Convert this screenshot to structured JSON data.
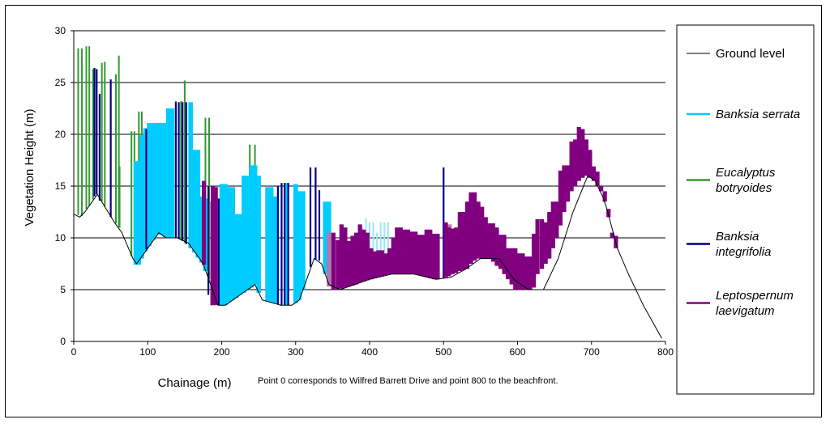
{
  "chart_data": {
    "type": "bar",
    "xlabel": "Chainage (m)",
    "ylabel": "Vegetation Height (m)",
    "note": "Point 0 corresponds to Wilfred Barrett Drive and point 800 to the beachfront.",
    "xlim": [
      0,
      800
    ],
    "ylim": [
      0,
      30
    ],
    "x_ticks": [
      0,
      100,
      200,
      300,
      400,
      500,
      600,
      700,
      800
    ],
    "y_ticks": [
      0,
      5,
      10,
      15,
      20,
      25,
      30
    ],
    "gridlines": "horizontal",
    "colors": {
      "ground": "#000000",
      "banksia_serrata": "#00ccff",
      "eucalyptus": "#339933",
      "integrifolia": "#000080",
      "leptospernum": "#800080",
      "leptospernum_light": "#b07ab0",
      "serrata_light": "#99e6ff"
    },
    "legend": [
      {
        "key": "ground",
        "label_lines": [
          "Ground  level"
        ],
        "italic": false
      },
      {
        "key": "banksia_serrata",
        "label_lines": [
          "Banksia serrata"
        ],
        "italic": true
      },
      {
        "key": "eucalyptus",
        "label_lines": [
          "Eucalyptus",
          "botryoides"
        ],
        "italic": true
      },
      {
        "key": "integrifolia",
        "label_lines": [
          "Banksia",
          "integrifolia"
        ],
        "italic": true
      },
      {
        "key": "leptospernum",
        "label_lines": [
          "Leptospernum",
          "laevigatum"
        ],
        "italic": true
      }
    ],
    "ground_level": {
      "x": [
        0,
        8,
        15,
        25,
        32,
        42,
        55,
        65,
        80,
        85,
        95,
        105,
        115,
        125,
        140,
        155,
        165,
        175,
        185,
        195,
        205,
        215,
        225,
        235,
        245,
        255,
        265,
        280,
        295,
        305,
        315,
        325,
        335,
        345,
        360,
        380,
        400,
        430,
        460,
        490,
        510,
        530,
        550,
        575,
        595,
        615,
        635,
        655,
        675,
        695,
        705,
        715,
        720,
        735,
        750,
        770,
        795
      ],
      "y": [
        12.3,
        12.0,
        12.5,
        13.5,
        14.2,
        13.0,
        11.5,
        10.5,
        8.0,
        7.5,
        8.5,
        9.5,
        10.5,
        10.0,
        10.0,
        9.5,
        8.5,
        7.5,
        5.5,
        3.5,
        3.5,
        4.0,
        4.5,
        5.0,
        5.5,
        4.0,
        3.8,
        3.5,
        3.5,
        4.0,
        6.0,
        8.0,
        7.5,
        5.5,
        5.0,
        5.5,
        6.0,
        6.5,
        6.5,
        6.0,
        6.2,
        7.0,
        8.0,
        8.0,
        6.0,
        5.0,
        5.0,
        8.0,
        12.5,
        16.0,
        15.5,
        14.0,
        13.0,
        9.0,
        6.5,
        3.5,
        0.3
      ]
    },
    "series": [
      {
        "name": "Eucalyptus botryoides",
        "key": "eucalyptus",
        "bars": [
          [
            6,
            12.2,
            28.3
          ],
          [
            11,
            12.1,
            28.3
          ],
          [
            17,
            12.8,
            28.5
          ],
          [
            21,
            13.1,
            28.5
          ],
          [
            26,
            13.7,
            26.3
          ],
          [
            38,
            13.5,
            26.9
          ],
          [
            42,
            13.0,
            27.0
          ],
          [
            57,
            11.4,
            25.8
          ],
          [
            61,
            11.0,
            27.6
          ],
          [
            62,
            11.0,
            16.9
          ],
          [
            78,
            8.2,
            20.3
          ],
          [
            82,
            7.6,
            20.3
          ],
          [
            88,
            7.8,
            22.2
          ],
          [
            92,
            8.3,
            22.2
          ],
          [
            100,
            9.0,
            19.7
          ],
          [
            105,
            9.5,
            20.6
          ],
          [
            110,
            10.0,
            21.0
          ],
          [
            113,
            10.3,
            21.0
          ],
          [
            138,
            10.0,
            23.2
          ],
          [
            145,
            9.8,
            23.2
          ],
          [
            150,
            9.5,
            25.2
          ],
          [
            178,
            6.8,
            21.6
          ],
          [
            183,
            6.0,
            21.6
          ],
          [
            238,
            5.0,
            19.0
          ],
          [
            245,
            5.5,
            19.0
          ]
        ]
      },
      {
        "name": "Banksia serrata",
        "key": "banksia_serrata",
        "bars": [
          [
            84,
            7.4,
            17.4
          ],
          [
            88,
            7.4,
            17.4
          ],
          [
            92,
            8.0,
            19.9
          ],
          [
            97,
            8.7,
            20.6
          ],
          [
            102,
            9.2,
            21.1
          ],
          [
            108,
            9.8,
            21.1
          ],
          [
            113,
            10.3,
            21.1
          ],
          [
            118,
            10.3,
            21.1
          ],
          [
            123,
            10.1,
            21.1
          ],
          [
            128,
            10.0,
            22.5
          ],
          [
            133,
            10.0,
            22.5
          ],
          [
            158,
            9.0,
            23.1
          ],
          [
            163,
            8.6,
            18.5
          ],
          [
            168,
            8.1,
            18.5
          ],
          [
            173,
            7.6,
            14.0
          ],
          [
            178,
            6.8,
            13.8
          ],
          [
            200,
            3.5,
            15.2
          ],
          [
            205,
            3.5,
            15.2
          ],
          [
            210,
            3.8,
            14.9
          ],
          [
            215,
            4.0,
            14.9
          ],
          [
            220,
            4.2,
            12.3
          ],
          [
            225,
            4.5,
            12.3
          ],
          [
            230,
            4.7,
            16.0
          ],
          [
            235,
            5.0,
            16.0
          ],
          [
            240,
            5.2,
            17.0
          ],
          [
            245,
            5.5,
            17.0
          ],
          [
            250,
            4.7,
            16.0
          ],
          [
            262,
            3.9,
            14.9
          ],
          [
            267,
            3.8,
            14.9
          ],
          [
            272,
            3.7,
            14.0
          ],
          [
            287,
            3.5,
            15.3
          ],
          [
            300,
            3.7,
            15.2
          ],
          [
            305,
            4.0,
            14.5
          ],
          [
            310,
            5.0,
            14.5
          ],
          [
            340,
            6.5,
            13.5
          ],
          [
            345,
            5.5,
            13.5
          ]
        ]
      },
      {
        "name": "Banksia serrata (light)",
        "key": "serrata_light",
        "bars": [
          [
            390,
            5.8,
            11.0
          ],
          [
            395,
            5.9,
            11.9
          ],
          [
            400,
            6.0,
            11.5
          ],
          [
            405,
            6.1,
            11.5
          ],
          [
            410,
            6.2,
            10.5
          ],
          [
            415,
            6.3,
            11.5
          ],
          [
            420,
            6.4,
            11.5
          ],
          [
            425,
            6.5,
            11.5
          ]
        ]
      },
      {
        "name": "Banksia integrifolia",
        "key": "integrifolia",
        "bars": [
          [
            28,
            14.0,
            26.4
          ],
          [
            31,
            14.2,
            26.3
          ],
          [
            35,
            13.6,
            23.9
          ],
          [
            50,
            12.0,
            25.3
          ],
          [
            98,
            8.9,
            20.5
          ],
          [
            138,
            10.0,
            23.1
          ],
          [
            142,
            9.9,
            23.1
          ],
          [
            147,
            9.7,
            23.1
          ],
          [
            152,
            9.4,
            23.1
          ],
          [
            182,
            4.5,
            15.0
          ],
          [
            186,
            3.5,
            13.5
          ],
          [
            196,
            3.5,
            13.8
          ],
          [
            276,
            3.6,
            15.0
          ],
          [
            281,
            3.5,
            15.3
          ],
          [
            285,
            3.5,
            15.3
          ],
          [
            290,
            3.5,
            15.3
          ],
          [
            320,
            7.2,
            16.8
          ],
          [
            327,
            7.9,
            16.8
          ],
          [
            332,
            7.8,
            14.6
          ],
          [
            500,
            6.1,
            16.8
          ]
        ]
      },
      {
        "name": "Leptospernum laevigatum",
        "key": "leptospernum",
        "bars": [
          [
            176,
            7.4,
            15.5
          ],
          [
            188,
            3.5,
            15.0
          ],
          [
            192,
            3.5,
            14.9
          ],
          [
            351,
            5.0,
            10.5
          ],
          [
            357,
            5.0,
            9.8
          ],
          [
            362,
            5.1,
            11.3
          ],
          [
            367,
            5.2,
            11.0
          ],
          [
            372,
            5.3,
            9.7
          ],
          [
            377,
            5.4,
            10.2
          ],
          [
            382,
            5.5,
            10.5
          ],
          [
            387,
            5.7,
            11.3
          ],
          [
            392,
            5.8,
            10.8
          ],
          [
            397,
            5.9,
            10.5
          ],
          [
            402,
            6.0,
            9.0
          ],
          [
            407,
            6.1,
            8.7
          ],
          [
            412,
            6.2,
            8.8
          ],
          [
            417,
            6.3,
            8.8
          ],
          [
            422,
            6.4,
            8.5
          ],
          [
            427,
            6.5,
            9.0
          ],
          [
            432,
            6.5,
            10.0
          ],
          [
            437,
            6.5,
            11.0
          ],
          [
            442,
            6.5,
            11.0
          ],
          [
            447,
            6.5,
            10.8
          ],
          [
            452,
            6.5,
            10.8
          ],
          [
            457,
            6.5,
            10.6
          ],
          [
            462,
            6.5,
            10.6
          ],
          [
            467,
            6.4,
            10.3
          ],
          [
            472,
            6.3,
            10.3
          ],
          [
            477,
            6.2,
            10.8
          ],
          [
            482,
            6.1,
            10.8
          ],
          [
            487,
            6.0,
            10.4
          ],
          [
            492,
            6.0,
            10.4
          ],
          [
            503,
            6.2,
            11.5
          ],
          [
            507,
            6.3,
            11.0
          ],
          [
            512,
            6.5,
            10.9
          ],
          [
            517,
            6.6,
            11.0
          ],
          [
            522,
            6.8,
            12.5
          ],
          [
            527,
            6.9,
            12.5
          ],
          [
            532,
            7.0,
            13.5
          ],
          [
            537,
            7.5,
            14.4
          ],
          [
            542,
            7.8,
            14.4
          ],
          [
            547,
            8.0,
            13.5
          ],
          [
            552,
            8.0,
            13.0
          ],
          [
            557,
            8.0,
            12.0
          ],
          [
            562,
            8.0,
            11.4
          ],
          [
            567,
            7.7,
            11.4
          ],
          [
            572,
            7.3,
            11.0
          ],
          [
            577,
            7.0,
            10.3
          ],
          [
            582,
            6.5,
            10.3
          ],
          [
            587,
            6.0,
            9.0
          ],
          [
            592,
            5.5,
            9.0
          ],
          [
            597,
            5.0,
            9.0
          ],
          [
            602,
            5.0,
            8.5
          ],
          [
            607,
            5.0,
            8.5
          ],
          [
            612,
            5.0,
            8.2
          ],
          [
            617,
            5.0,
            8.2
          ],
          [
            622,
            5.2,
            10.4
          ],
          [
            627,
            6.5,
            11.8
          ],
          [
            633,
            7.0,
            11.8
          ],
          [
            638,
            7.5,
            11.5
          ],
          [
            643,
            8.0,
            12.5
          ],
          [
            648,
            9.0,
            13.5
          ],
          [
            653,
            10.0,
            13.5
          ],
          [
            658,
            11.2,
            16.5
          ],
          [
            663,
            12.5,
            17.0
          ],
          [
            668,
            13.5,
            17.0
          ],
          [
            673,
            14.5,
            19.3
          ],
          [
            678,
            15.0,
            19.5
          ],
          [
            683,
            15.5,
            20.7
          ],
          [
            688,
            15.8,
            20.5
          ],
          [
            693,
            16.0,
            19.5
          ],
          [
            698,
            15.8,
            18.5
          ],
          [
            703,
            15.5,
            16.9
          ],
          [
            708,
            15.0,
            16.4
          ],
          [
            713,
            14.5,
            15.0
          ],
          [
            718,
            13.5,
            14.5
          ],
          [
            723,
            12.0,
            12.8
          ],
          [
            728,
            10.0,
            10.5
          ],
          [
            733,
            9.0,
            10.2
          ]
        ]
      },
      {
        "name": "Leptospernum laevigatum (light)",
        "key": "leptospernum_light",
        "bars": [
          [
            345,
            5.3,
            10.5
          ],
          [
            508,
            6.4,
            11.3
          ],
          [
            546,
            8.0,
            11.5
          ]
        ]
      }
    ]
  }
}
